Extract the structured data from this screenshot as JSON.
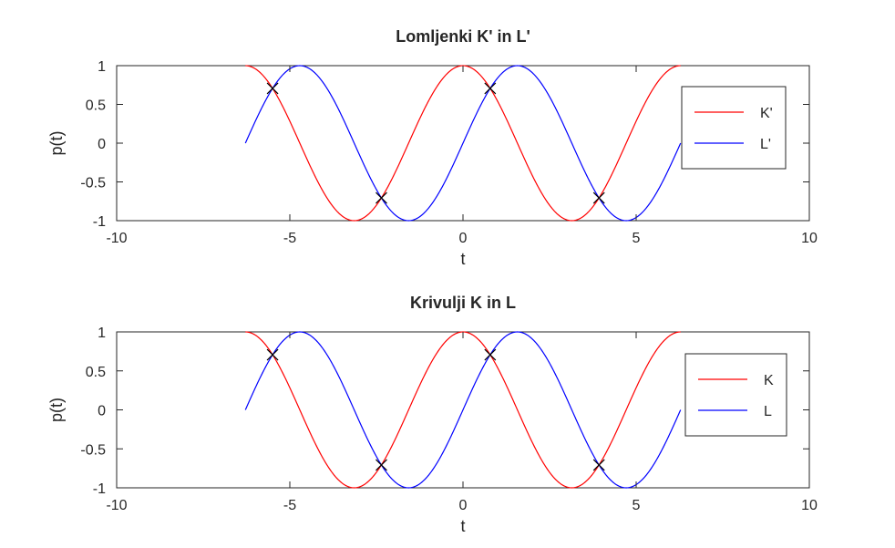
{
  "chart_data": [
    {
      "type": "line",
      "title": "Lomljenki K' in L'",
      "xlabel": "t",
      "ylabel": "p(t)",
      "xlim": [
        -10,
        10
      ],
      "ylim": [
        -1,
        1
      ],
      "xticks": [
        -10,
        -5,
        0,
        5,
        10
      ],
      "yticks": [
        -1,
        -0.5,
        0,
        0.5,
        1
      ],
      "xtick_labels": [
        "-10",
        "-5",
        "0",
        "5",
        "10"
      ],
      "ytick_labels": [
        "-1",
        "-0.5",
        "0",
        "0.5",
        "1"
      ],
      "grid": false,
      "legend_position": "right",
      "t_range": [
        -6.2832,
        6.2832
      ],
      "series": [
        {
          "name": "K'",
          "function": "cos(t)",
          "color": "#ff0000"
        },
        {
          "name": "L'",
          "function": "sin(t)",
          "color": "#0000ff"
        }
      ],
      "intersections": {
        "marker": "x",
        "color": "#000000",
        "points": [
          [
            -5.498,
            0.707
          ],
          [
            -2.356,
            -0.707
          ],
          [
            0.785,
            0.707
          ],
          [
            3.927,
            -0.707
          ]
        ]
      }
    },
    {
      "type": "line",
      "title": "Krivulji K in L",
      "xlabel": "t",
      "ylabel": "p(t)",
      "xlim": [
        -10,
        10
      ],
      "ylim": [
        -1,
        1
      ],
      "xticks": [
        -10,
        -5,
        0,
        5,
        10
      ],
      "yticks": [
        -1,
        -0.5,
        0,
        0.5,
        1
      ],
      "xtick_labels": [
        "-10",
        "-5",
        "0",
        "5",
        "10"
      ],
      "ytick_labels": [
        "-1",
        "-0.5",
        "0",
        "0.5",
        "1"
      ],
      "grid": false,
      "legend_position": "right",
      "t_range": [
        -6.2832,
        6.2832
      ],
      "series": [
        {
          "name": "K",
          "function": "cos(t)",
          "color": "#ff0000"
        },
        {
          "name": "L",
          "function": "sin(t)",
          "color": "#0000ff"
        }
      ],
      "intersections": {
        "marker": "x",
        "color": "#000000",
        "points": [
          [
            -5.498,
            0.707
          ],
          [
            -2.356,
            -0.707
          ],
          [
            0.785,
            0.707
          ],
          [
            3.927,
            -0.707
          ]
        ]
      }
    }
  ]
}
